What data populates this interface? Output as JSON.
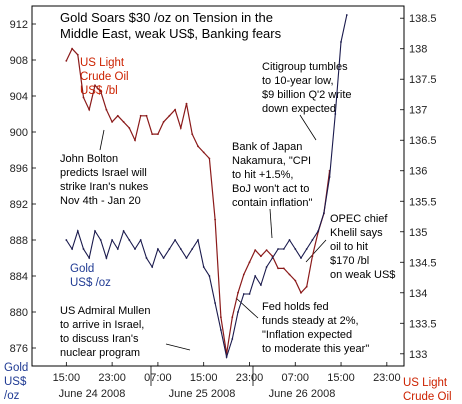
{
  "chart_data": {
    "type": "line",
    "title": [
      "Gold Soars $30 /oz on Tension in the",
      "Middle East, weak US$, Banking fears"
    ],
    "left_axis": {
      "label": [
        "Gold",
        "US$",
        "/oz"
      ],
      "ylim": [
        874,
        914
      ],
      "ticks": [
        876,
        880,
        884,
        888,
        892,
        896,
        900,
        904,
        908,
        912
      ]
    },
    "right_axis": {
      "label": [
        "US Light",
        "Crude Oil"
      ],
      "ylim": [
        132.8,
        138.7
      ],
      "ticks": [
        133,
        133.5,
        134,
        134.5,
        135,
        135.5,
        136,
        136.5,
        137,
        137.5,
        138,
        138.5
      ]
    },
    "x_axis": {
      "tick_labels": [
        "15:00",
        "23:00",
        "07:00",
        "15:00",
        "23:00",
        "07:00",
        "15:00",
        "23:00"
      ],
      "day_labels": [
        "June 24 2008",
        "June 25 2008",
        "June 26 2008"
      ]
    },
    "series": [
      {
        "name": "US Light Crude Oil US$ /bl",
        "axis": "right",
        "color": "#8b1a1a",
        "x": [
          0,
          2,
          4,
          6,
          8,
          10,
          12,
          14,
          16,
          18,
          20,
          22,
          24,
          26,
          28,
          30,
          32,
          34,
          36,
          38,
          40,
          42,
          44,
          46,
          48,
          50,
          52,
          54,
          56,
          58,
          60,
          62,
          64,
          66,
          68,
          70,
          72,
          74,
          76,
          78,
          80,
          82,
          84,
          86,
          88,
          90,
          92
        ],
        "values": [
          137.8,
          138.0,
          137.9,
          137.2,
          137.0,
          137.4,
          137.3,
          137.0,
          136.8,
          136.9,
          136.8,
          136.7,
          136.5,
          136.9,
          136.9,
          136.6,
          136.6,
          136.8,
          136.9,
          137.0,
          136.7,
          137.1,
          136.6,
          136.4,
          136.3,
          136.2,
          135.2,
          133.6,
          133.0,
          133.6,
          134.0,
          134.3,
          134.5,
          134.7,
          134.6,
          134.7,
          134.6,
          134.4,
          134.4,
          134.3,
          134.2,
          134.0,
          134.1,
          134.6,
          135.0,
          135.3,
          136.0
        ]
      },
      {
        "name": "Gold US$ /oz",
        "axis": "left",
        "color": "#1a1a4d",
        "x": [
          0,
          2,
          4,
          6,
          8,
          10,
          12,
          14,
          16,
          18,
          20,
          22,
          24,
          26,
          28,
          30,
          32,
          34,
          36,
          38,
          40,
          42,
          44,
          46,
          48,
          50,
          52,
          54,
          56,
          58,
          60,
          62,
          64,
          66,
          68,
          70,
          72,
          74,
          76,
          78,
          80,
          82,
          84,
          86,
          88,
          90,
          92,
          94,
          96,
          98
        ],
        "values": [
          888,
          887,
          889,
          887,
          886,
          889,
          888,
          886,
          888,
          887,
          889,
          888,
          887,
          888,
          886,
          885,
          887,
          886,
          887,
          888,
          887,
          886,
          887,
          888,
          885,
          884,
          881,
          878,
          875,
          877,
          880,
          882,
          882,
          884,
          883,
          885,
          886,
          887,
          887,
          888,
          887,
          886,
          887,
          888,
          889,
          891,
          895,
          902,
          910,
          913
        ]
      }
    ],
    "series_labels": {
      "oil": [
        "US Light",
        "Crude Oil",
        "US$ /bl"
      ],
      "gold": [
        "Gold",
        "US$ /oz"
      ]
    },
    "annotations": [
      [
        "Citigroup tumbles",
        "to 10-year low,",
        "$9 billion Q'2 write",
        "down expected"
      ],
      [
        "John Bolton",
        "predicts Israel will",
        "strike Iran's nukes",
        "Nov 4th - Jan 20"
      ],
      [
        "Bank of Japan",
        "Nakamura, \"CPI",
        "to hit +1.5%,",
        "BoJ won't act to",
        "contain inflation\""
      ],
      [
        "OPEC chief",
        "Khelil says",
        "oil to hit",
        "$170 /bl",
        "on weak US$"
      ],
      [
        "US Admiral Mullen",
        "to arrive in Israel,",
        "to discuss Iran's",
        "nuclear program"
      ],
      [
        "Fed holds fed",
        "funds steady at 2%,",
        "\"Inflation expected",
        "to moderate this year\""
      ]
    ],
    "colors": {
      "oil": "#8b1a1a",
      "gold": "#1a1a4d",
      "axis_label_oil": "#cc2200",
      "axis_label_gold": "#1f3a93",
      "frame": "#000000"
    },
    "grid": false
  }
}
